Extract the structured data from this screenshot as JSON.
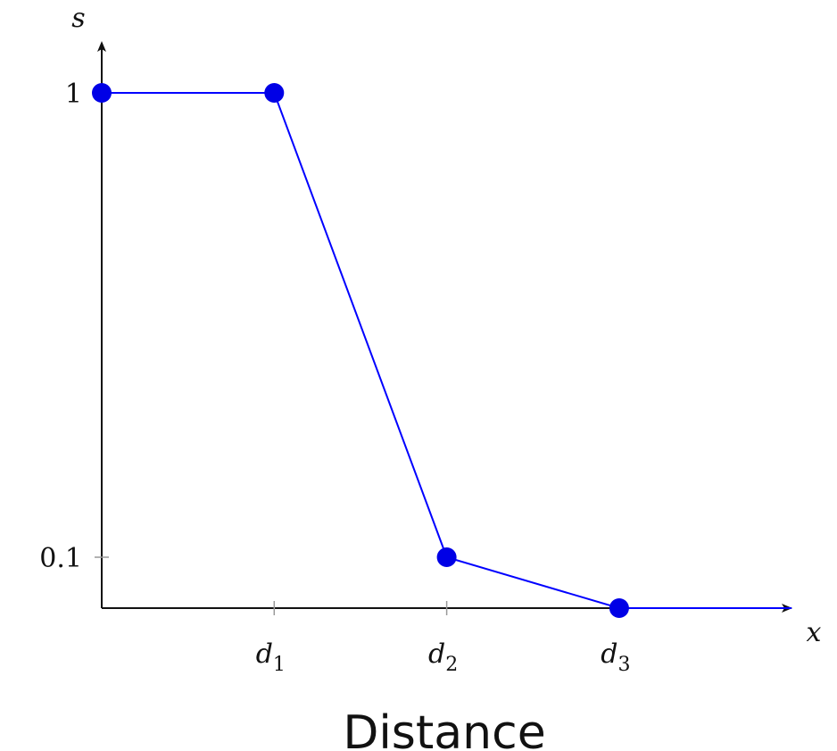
{
  "chart_data": {
    "type": "line",
    "title": "",
    "xlabel": "x",
    "ylabel": "s",
    "caption": "Distance",
    "x_ticks": [
      {
        "base": "d",
        "sub": "1",
        "value": 1
      },
      {
        "base": "d",
        "sub": "2",
        "value": 2
      },
      {
        "base": "d",
        "sub": "3",
        "value": 3
      }
    ],
    "y_ticks": [
      {
        "label": "1",
        "value": 1
      },
      {
        "label": "0.1",
        "value": 0.1
      }
    ],
    "series": [
      {
        "points": [
          {
            "x": 0,
            "y": 1
          },
          {
            "x": 1,
            "y": 1
          },
          {
            "x": 2,
            "y": 0.1
          },
          {
            "x": 3,
            "y": 0
          },
          {
            "x": 4,
            "y": 0
          }
        ],
        "markers": [
          0,
          1,
          2,
          3
        ],
        "color": "#0000ff",
        "marker_color": "#0000e6"
      }
    ],
    "xlim": [
      0,
      4
    ],
    "ylim": [
      0,
      1
    ],
    "grid": false,
    "legend": "none"
  }
}
